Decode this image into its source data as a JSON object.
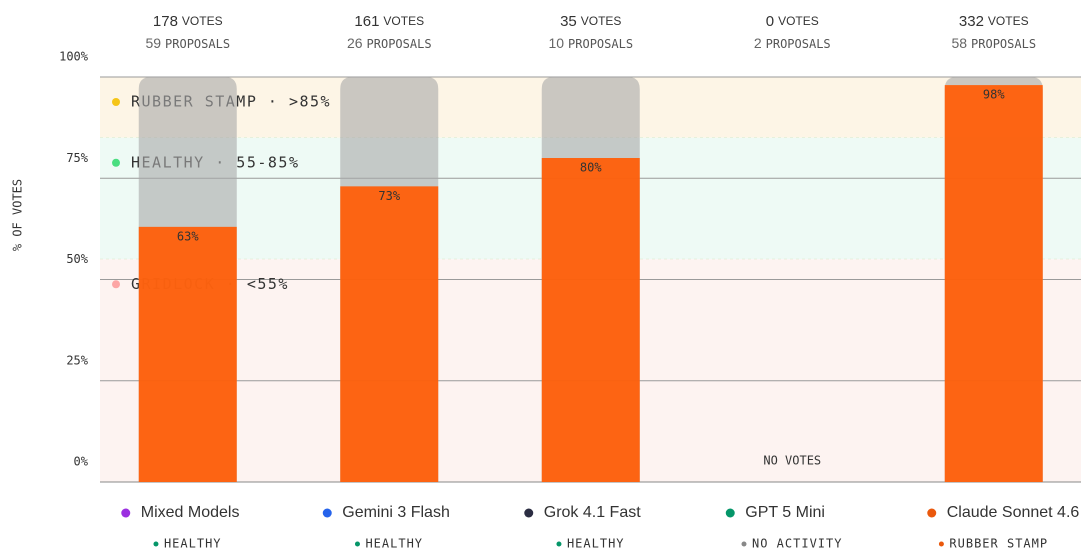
{
  "chart_data": {
    "type": "bar",
    "y_label": "% OF VOTES",
    "categories": [
      "Mixed Models",
      "Gemini 3 Flash",
      "Grok 4.1 Fast",
      "GPT 5 Mini",
      "Claude Sonnet 4.6"
    ],
    "category_colors": [
      "#9b30e0",
      "#2563eb",
      "#2b2d42",
      "#059669",
      "#ea580c"
    ],
    "values": [
      63,
      73,
      80,
      null,
      98
    ],
    "value_labels": [
      "63%",
      "73%",
      "80%",
      null,
      "98%"
    ],
    "color": "#ff5f0a",
    "track_color": "#a8a8a8",
    "empty_label": "NO VOTES",
    "votes": [
      178,
      161,
      35,
      0,
      332
    ],
    "votes_unit": "VOTES",
    "proposals": [
      59,
      26,
      10,
      2,
      58
    ],
    "proposals_unit": "PROPOSALS",
    "statuses": [
      "HEALTHY",
      "HEALTHY",
      "HEALTHY",
      "NO ACTIVITY",
      "RUBBER STAMP"
    ],
    "status_colors": [
      "#059669",
      "#059669",
      "#059669",
      "#888888",
      "#ea580c"
    ],
    "zones": [
      {
        "label": "RUBBER STAMP · >85%",
        "from": 85,
        "to": 100,
        "color": "#fdf5e6",
        "dot": "#f5c518"
      },
      {
        "label": "HEALTHY · 55-85%",
        "from": 55,
        "to": 85,
        "color": "#eefaf5",
        "dot": "#4ade80"
      },
      {
        "label": "GRIDLOCK · <55%",
        "from": 0,
        "to": 55,
        "color": "#fdf3f1",
        "dot": "#fca5a5"
      }
    ],
    "ylim": [
      0,
      100
    ],
    "yticks": [
      {
        "value": 0,
        "label": "0%"
      },
      {
        "value": 25,
        "label": "25%"
      },
      {
        "value": 50,
        "label": "50%"
      },
      {
        "value": 75,
        "label": "75%"
      },
      {
        "value": 100,
        "label": "100%"
      }
    ],
    "grid": true
  }
}
